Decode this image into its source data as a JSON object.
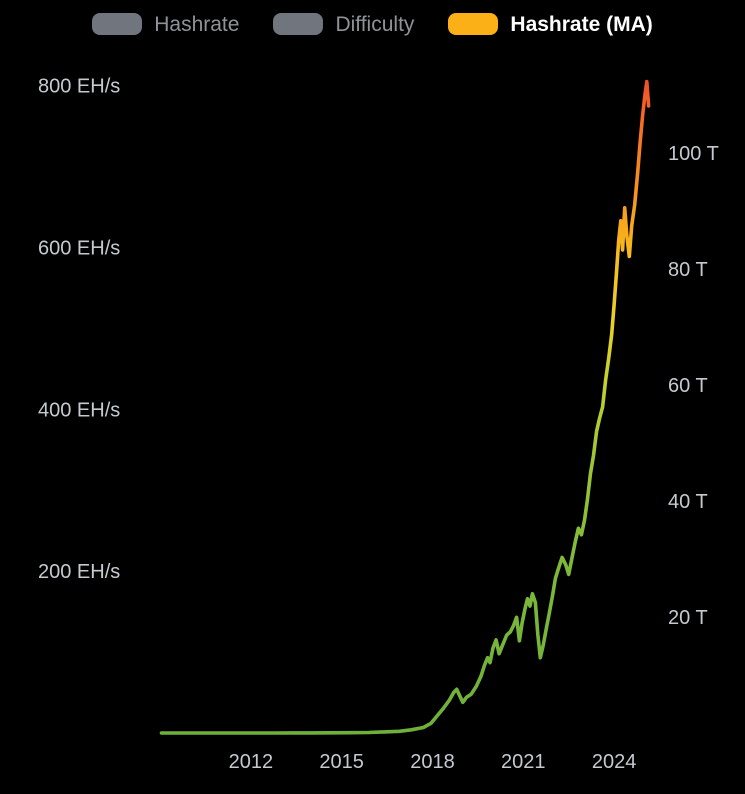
{
  "legend": {
    "items": [
      {
        "label": "Hashrate",
        "swatch_color": "#71767e",
        "text_color": "#8f9398",
        "disabled": true
      },
      {
        "label": "Difficulty",
        "swatch_color": "#71767e",
        "text_color": "#8f9398",
        "disabled": true
      },
      {
        "label": "Hashrate (MA)",
        "swatch_color": "#fbb017",
        "text_color": "#ffffff",
        "disabled": false
      }
    ]
  },
  "chart_data": {
    "type": "line",
    "title": "",
    "background": "#000000",
    "grid": false,
    "legend_position": "top",
    "tick_text_color": "#c5cad0",
    "left_axis": {
      "unit": "EH/s",
      "range": [
        0,
        807
      ],
      "ticks": [
        {
          "value": 200,
          "label": "200 EH/s"
        },
        {
          "value": 400,
          "label": "400 EH/s"
        },
        {
          "value": 600,
          "label": "600 EH/s"
        },
        {
          "value": 800,
          "label": "800 EH/s"
        }
      ]
    },
    "right_axis": {
      "unit": "T",
      "range": [
        0,
        112.6
      ],
      "ticks": [
        {
          "value": 20,
          "label": "20 T"
        },
        {
          "value": 40,
          "label": "40 T"
        },
        {
          "value": 60,
          "label": "60 T"
        },
        {
          "value": 80,
          "label": "80 T"
        },
        {
          "value": 100,
          "label": "100 T"
        }
      ]
    },
    "x_axis": {
      "range": [
        2008.9,
        2025.35
      ],
      "ticks": [
        {
          "value": 2012,
          "label": "2012"
        },
        {
          "value": 2015,
          "label": "2015"
        },
        {
          "value": 2018,
          "label": "2018"
        },
        {
          "value": 2021,
          "label": "2021"
        },
        {
          "value": 2024,
          "label": "2024"
        }
      ]
    },
    "line_gradient_stops": [
      {
        "value": 0,
        "color": "#6fb03a"
      },
      {
        "value": 200,
        "color": "#7cb83a"
      },
      {
        "value": 330,
        "color": "#9cc436"
      },
      {
        "value": 430,
        "color": "#c3d02e"
      },
      {
        "value": 510,
        "color": "#e7d226"
      },
      {
        "value": 580,
        "color": "#f7c01e"
      },
      {
        "value": 650,
        "color": "#f99c1b"
      },
      {
        "value": 720,
        "color": "#f67d20"
      },
      {
        "value": 790,
        "color": "#f15b28"
      },
      {
        "value": 807,
        "color": "#ee4f2a"
      }
    ],
    "series": [
      {
        "name": "Hashrate (MA)",
        "axis": "left",
        "points": [
          [
            2009.05,
            1e-06
          ],
          [
            2010.0,
            1e-05
          ],
          [
            2010.8,
            0.0002
          ],
          [
            2011.4,
            0.009
          ],
          [
            2012.0,
            0.01
          ],
          [
            2012.8,
            0.02
          ],
          [
            2013.4,
            0.07
          ],
          [
            2014.0,
            0.18
          ],
          [
            2014.7,
            0.27
          ],
          [
            2015.3,
            0.38
          ],
          [
            2015.9,
            0.6
          ],
          [
            2016.4,
            1.3
          ],
          [
            2016.9,
            2.1
          ],
          [
            2017.3,
            4.0
          ],
          [
            2017.7,
            6.8
          ],
          [
            2017.95,
            12
          ],
          [
            2018.15,
            21
          ],
          [
            2018.35,
            30
          ],
          [
            2018.55,
            40
          ],
          [
            2018.7,
            50
          ],
          [
            2018.8,
            54
          ],
          [
            2018.9,
            46
          ],
          [
            2019.0,
            38
          ],
          [
            2019.12,
            44
          ],
          [
            2019.28,
            48
          ],
          [
            2019.45,
            58
          ],
          [
            2019.6,
            70
          ],
          [
            2019.72,
            84
          ],
          [
            2019.82,
            93
          ],
          [
            2019.9,
            87
          ],
          [
            2020.0,
            105
          ],
          [
            2020.1,
            115
          ],
          [
            2020.2,
            98
          ],
          [
            2020.32,
            109
          ],
          [
            2020.45,
            121
          ],
          [
            2020.57,
            125
          ],
          [
            2020.68,
            133
          ],
          [
            2020.78,
            143
          ],
          [
            2020.87,
            114
          ],
          [
            2020.96,
            136
          ],
          [
            2021.06,
            154
          ],
          [
            2021.14,
            166
          ],
          [
            2021.22,
            157
          ],
          [
            2021.3,
            172
          ],
          [
            2021.4,
            161
          ],
          [
            2021.48,
            122
          ],
          [
            2021.56,
            93
          ],
          [
            2021.66,
            109
          ],
          [
            2021.76,
            129
          ],
          [
            2021.86,
            148
          ],
          [
            2021.96,
            169
          ],
          [
            2022.06,
            191
          ],
          [
            2022.16,
            203
          ],
          [
            2022.28,
            217
          ],
          [
            2022.4,
            208
          ],
          [
            2022.5,
            196
          ],
          [
            2022.62,
            219
          ],
          [
            2022.72,
            237
          ],
          [
            2022.82,
            253
          ],
          [
            2022.92,
            245
          ],
          [
            2023.02,
            263
          ],
          [
            2023.12,
            289
          ],
          [
            2023.22,
            321
          ],
          [
            2023.32,
            343
          ],
          [
            2023.42,
            373
          ],
          [
            2023.52,
            389
          ],
          [
            2023.62,
            403
          ],
          [
            2023.72,
            437
          ],
          [
            2023.82,
            463
          ],
          [
            2023.92,
            493
          ],
          [
            2024.0,
            529
          ],
          [
            2024.08,
            571
          ],
          [
            2024.15,
            609
          ],
          [
            2024.22,
            633
          ],
          [
            2024.28,
            597
          ],
          [
            2024.35,
            649
          ],
          [
            2024.42,
            615
          ],
          [
            2024.5,
            589
          ],
          [
            2024.58,
            627
          ],
          [
            2024.68,
            653
          ],
          [
            2024.78,
            693
          ],
          [
            2024.86,
            731
          ],
          [
            2024.94,
            763
          ],
          [
            2025.02,
            789
          ],
          [
            2025.08,
            805
          ],
          [
            2025.14,
            775
          ]
        ]
      }
    ]
  }
}
